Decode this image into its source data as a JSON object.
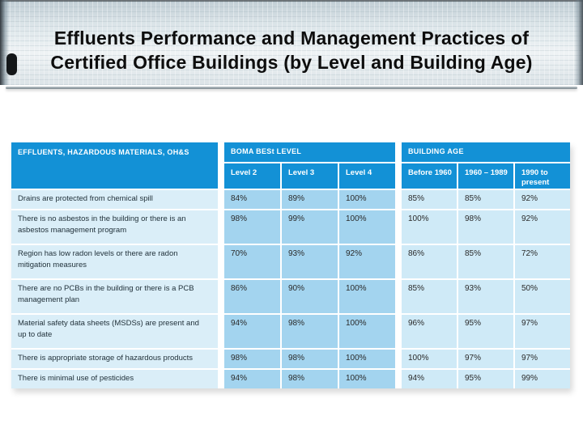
{
  "slide": {
    "title_line1": "Effluents Performance and Management Practices of",
    "title_line2": "Certified Office Buildings (by Level and Building Age)"
  },
  "table": {
    "row_header": "EFFLUENTS, HAZARDOUS MATERIALS, OH&S",
    "groups": [
      {
        "label": "BOMA BESt LEVEL",
        "columns": [
          "Level 2",
          "Level 3",
          "Level 4"
        ]
      },
      {
        "label": "BUILDING AGE",
        "columns": [
          "Before 1960",
          "1960 – 1989",
          "1990 to present"
        ]
      }
    ],
    "rows": [
      {
        "label": "Drains are protected from chemical spill",
        "values": [
          "84%",
          "89%",
          "100%",
          "85%",
          "85%",
          "92%"
        ]
      },
      {
        "label": "There is no asbestos in the building or there is an asbestos management program",
        "values": [
          "98%",
          "99%",
          "100%",
          "100%",
          "98%",
          "92%"
        ]
      },
      {
        "label": "Region has low radon levels or there are radon mitigation measures",
        "values": [
          "70%",
          "93%",
          "92%",
          "86%",
          "85%",
          "72%"
        ]
      },
      {
        "label": "There are no PCBs in the building or there is a PCB management plan",
        "values": [
          "86%",
          "90%",
          "100%",
          "85%",
          "93%",
          "50%"
        ]
      },
      {
        "label": "Material safety data sheets (MSDSs) are present and up to date",
        "values": [
          "94%",
          "98%",
          "100%",
          "96%",
          "95%",
          "97%"
        ]
      },
      {
        "label": "There is appropriate storage of hazardous products",
        "values": [
          "98%",
          "98%",
          "100%",
          "100%",
          "97%",
          "97%"
        ]
      },
      {
        "label": "There is minimal use of pesticides",
        "values": [
          "94%",
          "98%",
          "100%",
          "94%",
          "95%",
          "99%"
        ]
      }
    ]
  },
  "colors": {
    "header_blue": "#1391d6",
    "level_cell_blue": "#a3d4ef",
    "age_cell_blue": "#cfeaf7",
    "label_cell_blue": "#daeef8"
  }
}
